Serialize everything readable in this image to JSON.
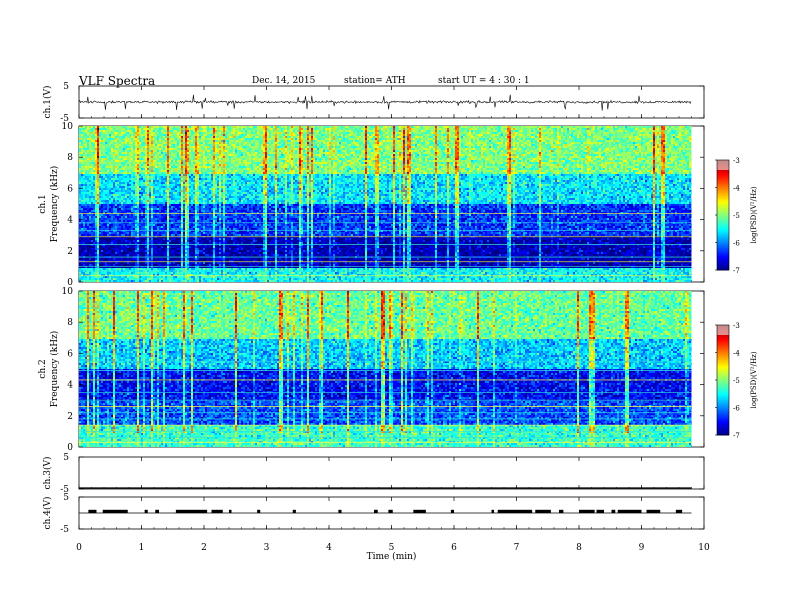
{
  "header": {
    "title": "VLF  Spectra",
    "date": "Dec. 14,  2015",
    "station": "station= ATH",
    "start_ut": "start  UT  =   4  : 30 : 1"
  },
  "chart_data": [
    {
      "type": "line",
      "name": "ch1-voltage",
      "ylabel": "ch.1(V)",
      "ylim": [
        -5,
        5
      ],
      "y_tick_labels": [
        "5",
        "-5"
      ],
      "trace_level": 0,
      "trace_amplitude": 0.7,
      "spike_amplitude": 2.5
    },
    {
      "type": "heatmap",
      "name": "ch1-spectrogram",
      "ylabel": [
        "ch.1",
        "Frequency  (kHz)"
      ],
      "ylim": [
        0,
        10
      ],
      "y_ticks": [
        0,
        2,
        4,
        6,
        8,
        10
      ],
      "y_tick_labels": [
        "0",
        "2",
        "4",
        "6",
        "8",
        "10"
      ],
      "colorbar": {
        "label": "log(PSD)(V²/Hz)",
        "range": [
          -7,
          -3
        ],
        "ticks": [
          -3,
          -4,
          -5,
          -6,
          -7
        ],
        "tick_labels": [
          "-3",
          "-4",
          "-5",
          "-6",
          "-7"
        ]
      },
      "band_levels": [
        {
          "from": 0,
          "to": 1,
          "level": -5.5
        },
        {
          "from": 1,
          "to": 3,
          "level": -6.8
        },
        {
          "from": 3,
          "to": 5,
          "level": -6.3
        },
        {
          "from": 5,
          "to": 7,
          "level": -5.6
        },
        {
          "from": 7,
          "to": 10,
          "level": -5.0
        }
      ]
    },
    {
      "type": "heatmap",
      "name": "ch2-spectrogram",
      "ylabel": [
        "ch.2",
        "Frequency  (kHz)"
      ],
      "ylim": [
        0,
        10
      ],
      "y_ticks": [
        0,
        2,
        4,
        6,
        8,
        10
      ],
      "y_tick_labels": [
        "0",
        "2",
        "4",
        "6",
        "8",
        "10"
      ],
      "colorbar": {
        "label": "log(PSD)(V²/Hz)",
        "range": [
          -7,
          -3
        ],
        "ticks": [
          -3,
          -4,
          -5,
          -6,
          -7
        ],
        "tick_labels": [
          "-3",
          "-4",
          "-5",
          "-6",
          "-7"
        ]
      },
      "band_levels": [
        {
          "from": 0,
          "to": 1.5,
          "level": -5.3
        },
        {
          "from": 1.5,
          "to": 3,
          "level": -6.2
        },
        {
          "from": 3,
          "to": 5,
          "level": -6.5
        },
        {
          "from": 5,
          "to": 7,
          "level": -5.7
        },
        {
          "from": 7,
          "to": 10,
          "level": -5.1
        }
      ]
    },
    {
      "type": "line",
      "name": "ch3-voltage",
      "ylabel": "ch.3(V)",
      "ylim": [
        -5,
        5
      ],
      "y_tick_labels": [
        "5",
        "-5"
      ],
      "trace_level": -5,
      "trace_amplitude": 0,
      "spike_amplitude": 0
    },
    {
      "type": "line",
      "name": "ch4-voltage",
      "ylabel": "ch.4(V)",
      "ylim": [
        -5,
        5
      ],
      "y_tick_labels": [
        "5",
        "-5"
      ],
      "trace_level": 0,
      "pulse_height": 1,
      "pulse_intervals": [
        [
          0.15,
          0.28
        ],
        [
          0.38,
          0.78
        ],
        [
          1.05,
          1.1
        ],
        [
          1.22,
          1.28
        ],
        [
          1.55,
          2.05
        ],
        [
          2.12,
          2.3
        ],
        [
          2.4,
          2.44
        ],
        [
          2.85,
          2.9
        ],
        [
          3.42,
          3.47
        ],
        [
          4.15,
          4.2
        ],
        [
          4.72,
          4.78
        ],
        [
          4.95,
          5.02
        ],
        [
          5.35,
          5.55
        ],
        [
          5.95,
          6.0
        ],
        [
          6.6,
          6.64
        ],
        [
          6.7,
          7.25
        ],
        [
          7.3,
          7.55
        ],
        [
          7.68,
          7.75
        ],
        [
          8.0,
          8.25
        ],
        [
          8.28,
          8.4
        ],
        [
          8.52,
          8.58
        ],
        [
          8.62,
          9.0
        ],
        [
          9.08,
          9.3
        ],
        [
          9.55,
          9.65
        ]
      ]
    }
  ],
  "x_axis": {
    "label": "Time  (min)",
    "xlim": [
      0,
      10
    ],
    "ticks": [
      0,
      1,
      2,
      3,
      4,
      5,
      6,
      7,
      8,
      9,
      10
    ],
    "tick_labels": [
      "0",
      "1",
      "2",
      "3",
      "4",
      "5",
      "6",
      "7",
      "8",
      "9",
      "10"
    ],
    "data_end": 9.8
  }
}
